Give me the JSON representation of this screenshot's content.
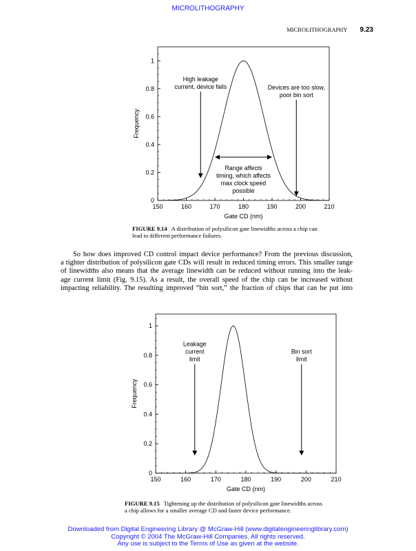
{
  "header": {
    "banner": "MICROLITHOGRAPHY",
    "running_title": "MICROLITHOGRAPHY",
    "page_number": "9.23"
  },
  "figure1": {
    "label": "FIGURE 9.14",
    "caption_l1": "A distribution of polysilicon gate linewidths across a chip can",
    "caption_l2": "lead to different performance failures."
  },
  "body": {
    "lines": [
      "So how does improved CD control impact device performance? From the previous discussion,",
      "a tighter distribution of polysilicon gate CDs will result in reduced timing errors. This smaller range",
      "of linewidths also means that the average linewidth can be reduced without running into the leak-",
      "age current limit (Fig. 9.15). As a result, the overall speed of the chip can be increased without",
      "impacting reliability. The resulting improved “bin sort,” the fraction of chips that can be put into"
    ]
  },
  "figure2": {
    "label": "FIGURE 9.15",
    "caption_l1": "Tightening up the distribution of polysilicon gate linewidths across",
    "caption_l2": "a chip allows for a smaller average CD and faster device performance."
  },
  "footer": {
    "l1": "Downloaded from Digital Engineering Library @ McGraw-Hill (www.digitalengineeringlibrary.com)",
    "l2": "Copyright © 2004 The McGraw-Hill Companies. All rights reserved.",
    "l3": "Any use is subject to the Terms of Use as given at the website."
  },
  "chart_data": [
    {
      "type": "line",
      "xlabel": "Gate CD (nm)",
      "ylabel": "Frequency",
      "xlim": [
        150,
        210
      ],
      "ylim": [
        0,
        1.1
      ],
      "xticks": [
        "150",
        "160",
        "170",
        "180",
        "190",
        "200",
        "210"
      ],
      "yticks": [
        "0",
        "0.2",
        "0.4",
        "0.6",
        "0.8",
        "1"
      ],
      "curve": {
        "shape": "gaussian",
        "mean": 180,
        "sigma": 7,
        "peak": 1
      },
      "grid": false,
      "annotations": [
        {
          "lines": [
            "High leakage",
            "current, device fails"
          ],
          "arrow": "down",
          "x": 165,
          "from_y": 0.78,
          "to_y": 0.16
        },
        {
          "lines": [
            "Devices are too slow,",
            "poor bin sort"
          ],
          "arrow": "down",
          "x": 198.5,
          "from_y": 0.72,
          "to_y": 0.03
        },
        {
          "lines": [
            "Range affects",
            "timing, which affects",
            "max clock speed",
            "possible"
          ],
          "arrow": "double-horizontal",
          "x_from": 170,
          "x_to": 190,
          "y": 0.31
        }
      ]
    },
    {
      "type": "line",
      "xlabel": "Gate CD (nm)",
      "ylabel": "Frequency",
      "xlim": [
        150,
        210
      ],
      "ylim": [
        0,
        1.08
      ],
      "xticks": [
        "150",
        "160",
        "170",
        "180",
        "190",
        "200",
        "210"
      ],
      "yticks": [
        "0",
        "0.2",
        "0.4",
        "0.6",
        "0.8",
        "1"
      ],
      "curve": {
        "shape": "gaussian",
        "mean": 175.8,
        "sigma": 4,
        "peak": 1
      },
      "grid": false,
      "annotations": [
        {
          "lines": [
            "Leakage",
            "current",
            "limit"
          ],
          "arrow": "down",
          "x": 163,
          "from_y": 0.74,
          "to_y": 0.12
        },
        {
          "lines": [
            "Bin sort",
            "limit"
          ],
          "arrow": "down",
          "x": 198.5,
          "from_y": 0.74,
          "to_y": 0.12
        }
      ]
    }
  ]
}
